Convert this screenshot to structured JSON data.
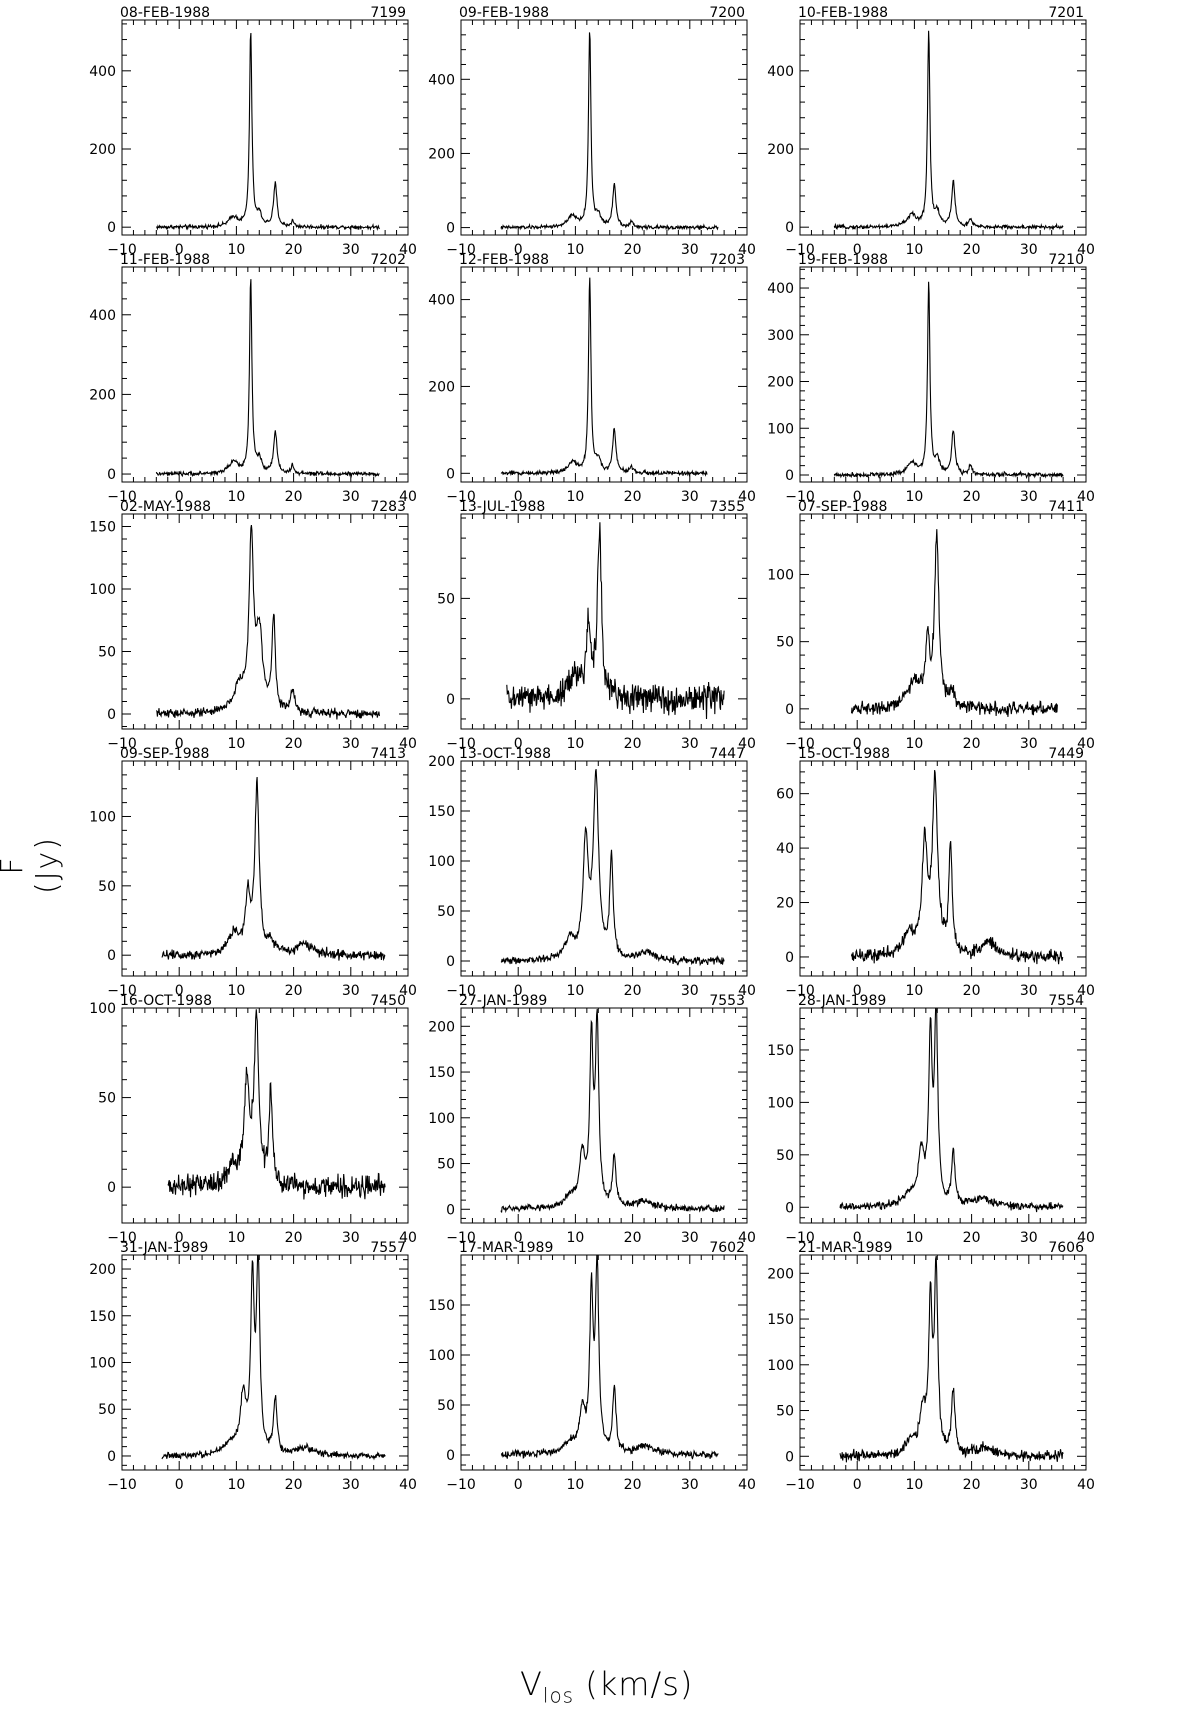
{
  "figure": {
    "ylabel": "F (Jy)",
    "xlabel_main": "V",
    "xlabel_sub": "los",
    "xlabel_unit": "(km/s)"
  },
  "chart_data": [
    {
      "type": "line",
      "title": "08-FEB-1988",
      "id_label": "7199",
      "xlim": [
        -10,
        40
      ],
      "ylim": [
        -20,
        530
      ],
      "yticks": [
        0,
        200,
        400
      ],
      "xticks": [
        -10,
        0,
        10,
        20,
        30,
        40
      ],
      "xrange": [
        -4,
        35
      ],
      "noise": 4,
      "peaks": [
        {
          "v": 9.5,
          "a": 25,
          "w": 1.0
        },
        {
          "v": 12.5,
          "a": 500,
          "w": 0.25
        },
        {
          "v": 14.0,
          "a": 30,
          "w": 0.5
        },
        {
          "v": 16.8,
          "a": 110,
          "w": 0.35
        },
        {
          "v": 19.8,
          "a": 15,
          "w": 0.3
        }
      ]
    },
    {
      "type": "line",
      "title": "09-FEB-1988",
      "id_label": "7200",
      "xlim": [
        -10,
        40
      ],
      "ylim": [
        -20,
        560
      ],
      "yticks": [
        0,
        200,
        400
      ],
      "xticks": [
        -10,
        0,
        10,
        20,
        30,
        40
      ],
      "xrange": [
        -3,
        35
      ],
      "noise": 4,
      "peaks": [
        {
          "v": 9.5,
          "a": 30,
          "w": 1.0
        },
        {
          "v": 12.5,
          "a": 530,
          "w": 0.25
        },
        {
          "v": 14.0,
          "a": 30,
          "w": 0.5
        },
        {
          "v": 16.8,
          "a": 115,
          "w": 0.35
        },
        {
          "v": 19.8,
          "a": 15,
          "w": 0.3
        }
      ]
    },
    {
      "type": "line",
      "title": "10-FEB-1988",
      "id_label": "7201",
      "xlim": [
        -10,
        40
      ],
      "ylim": [
        -20,
        530
      ],
      "yticks": [
        0,
        200,
        400
      ],
      "xticks": [
        -10,
        0,
        10,
        20,
        30,
        40
      ],
      "xrange": [
        -4,
        36
      ],
      "noise": 4,
      "peaks": [
        {
          "v": 9.5,
          "a": 30,
          "w": 1.0
        },
        {
          "v": 12.5,
          "a": 500,
          "w": 0.25
        },
        {
          "v": 14.0,
          "a": 35,
          "w": 0.5
        },
        {
          "v": 16.8,
          "a": 115,
          "w": 0.35
        },
        {
          "v": 19.8,
          "a": 20,
          "w": 0.3
        }
      ]
    },
    {
      "type": "line",
      "title": "11-FEB-1988",
      "id_label": "7202",
      "xlim": [
        -10,
        40
      ],
      "ylim": [
        -20,
        520
      ],
      "yticks": [
        0,
        200,
        400
      ],
      "xticks": [
        -10,
        0,
        10,
        20,
        30,
        40
      ],
      "xrange": [
        -4,
        35
      ],
      "noise": 4,
      "peaks": [
        {
          "v": 9.5,
          "a": 30,
          "w": 1.0
        },
        {
          "v": 12.5,
          "a": 490,
          "w": 0.25
        },
        {
          "v": 14.0,
          "a": 35,
          "w": 0.5
        },
        {
          "v": 16.8,
          "a": 105,
          "w": 0.35
        },
        {
          "v": 19.8,
          "a": 20,
          "w": 0.3
        }
      ]
    },
    {
      "type": "line",
      "title": "12-FEB-1988",
      "id_label": "7203",
      "xlim": [
        -10,
        40
      ],
      "ylim": [
        -20,
        475
      ],
      "yticks": [
        0,
        200,
        400
      ],
      "xticks": [
        -10,
        0,
        10,
        20,
        30,
        40
      ],
      "xrange": [
        -3,
        33
      ],
      "noise": 4,
      "peaks": [
        {
          "v": 9.5,
          "a": 25,
          "w": 1.0
        },
        {
          "v": 12.5,
          "a": 445,
          "w": 0.25
        },
        {
          "v": 14.0,
          "a": 30,
          "w": 0.5
        },
        {
          "v": 16.8,
          "a": 100,
          "w": 0.35
        },
        {
          "v": 19.8,
          "a": 15,
          "w": 0.3
        }
      ]
    },
    {
      "type": "line",
      "title": "19-FEB-1988",
      "id_label": "7210",
      "xlim": [
        -10,
        40
      ],
      "ylim": [
        -15,
        445
      ],
      "yticks": [
        0,
        100,
        200,
        300,
        400
      ],
      "xticks": [
        -10,
        0,
        10,
        20,
        30,
        40
      ],
      "xrange": [
        -4,
        36
      ],
      "noise": 4,
      "peaks": [
        {
          "v": 9.5,
          "a": 25,
          "w": 1.0
        },
        {
          "v": 12.5,
          "a": 410,
          "w": 0.25
        },
        {
          "v": 14.0,
          "a": 30,
          "w": 0.5
        },
        {
          "v": 16.8,
          "a": 95,
          "w": 0.35
        },
        {
          "v": 19.8,
          "a": 20,
          "w": 0.3
        }
      ]
    },
    {
      "type": "line",
      "title": "02-MAY-1988",
      "id_label": "7283",
      "xlim": [
        -10,
        40
      ],
      "ylim": [
        -12,
        160
      ],
      "yticks": [
        0,
        50,
        100,
        150
      ],
      "xticks": [
        -10,
        0,
        10,
        20,
        30,
        40
      ],
      "xrange": [
        -4,
        35
      ],
      "noise": 3,
      "peaks": [
        {
          "v": 10.5,
          "a": 20,
          "w": 1.2
        },
        {
          "v": 12.6,
          "a": 135,
          "w": 0.45
        },
        {
          "v": 14.0,
          "a": 60,
          "w": 0.7
        },
        {
          "v": 16.5,
          "a": 75,
          "w": 0.35
        },
        {
          "v": 19.8,
          "a": 18,
          "w": 0.4
        }
      ]
    },
    {
      "type": "line",
      "title": "13-JUL-1988",
      "id_label": "7355",
      "xlim": [
        -10,
        40
      ],
      "ylim": [
        -15,
        92
      ],
      "yticks": [
        0,
        50
      ],
      "xticks": [
        -10,
        0,
        10,
        20,
        30,
        40
      ],
      "xrange": [
        -2,
        36
      ],
      "noise": 6,
      "peaks": [
        {
          "v": 10.0,
          "a": 10,
          "w": 1.5
        },
        {
          "v": 12.3,
          "a": 35,
          "w": 0.4
        },
        {
          "v": 14.2,
          "a": 80,
          "w": 0.45
        }
      ]
    },
    {
      "type": "line",
      "title": "07-SEP-1988",
      "id_label": "7411",
      "xlim": [
        -10,
        40
      ],
      "ylim": [
        -15,
        145
      ],
      "yticks": [
        0,
        50,
        100
      ],
      "xticks": [
        -10,
        0,
        10,
        20,
        30,
        40
      ],
      "xrange": [
        -1,
        35
      ],
      "noise": 4,
      "peaks": [
        {
          "v": 10.0,
          "a": 20,
          "w": 1.5
        },
        {
          "v": 12.3,
          "a": 45,
          "w": 0.4
        },
        {
          "v": 13.9,
          "a": 125,
          "w": 0.45
        },
        {
          "v": 16.5,
          "a": 10,
          "w": 0.6
        }
      ]
    },
    {
      "type": "line",
      "title": "09-SEP-1988",
      "id_label": "7413",
      "xlim": [
        -10,
        40
      ],
      "ylim": [
        -15,
        140
      ],
      "yticks": [
        0,
        50,
        100
      ],
      "xticks": [
        -10,
        0,
        10,
        20,
        30,
        40
      ],
      "xrange": [
        -3,
        36
      ],
      "noise": 3,
      "peaks": [
        {
          "v": 9.5,
          "a": 15,
          "w": 1.2
        },
        {
          "v": 12.0,
          "a": 40,
          "w": 0.5
        },
        {
          "v": 13.6,
          "a": 120,
          "w": 0.45
        },
        {
          "v": 16.0,
          "a": 8,
          "w": 0.8
        },
        {
          "v": 22.0,
          "a": 8,
          "w": 1.5
        }
      ]
    },
    {
      "type": "line",
      "title": "13-OCT-1988",
      "id_label": "7447",
      "xlim": [
        -10,
        40
      ],
      "ylim": [
        -15,
        200
      ],
      "yticks": [
        0,
        50,
        100,
        150,
        200
      ],
      "xticks": [
        -10,
        0,
        10,
        20,
        30,
        40
      ],
      "xrange": [
        -3,
        36
      ],
      "noise": 3,
      "peaks": [
        {
          "v": 9.0,
          "a": 20,
          "w": 1.0
        },
        {
          "v": 11.8,
          "a": 115,
          "w": 0.55
        },
        {
          "v": 13.6,
          "a": 180,
          "w": 0.55
        },
        {
          "v": 16.3,
          "a": 100,
          "w": 0.35
        },
        {
          "v": 22.5,
          "a": 8,
          "w": 1.5
        }
      ]
    },
    {
      "type": "line",
      "title": "15-OCT-1988",
      "id_label": "7449",
      "xlim": [
        -10,
        40
      ],
      "ylim": [
        -7,
        72
      ],
      "yticks": [
        0,
        20,
        40,
        60
      ],
      "xticks": [
        -10,
        0,
        10,
        20,
        30,
        40
      ],
      "xrange": [
        -1,
        36
      ],
      "noise": 2,
      "peaks": [
        {
          "v": 9.0,
          "a": 8,
          "w": 1.2
        },
        {
          "v": 11.8,
          "a": 40,
          "w": 0.55
        },
        {
          "v": 13.6,
          "a": 63,
          "w": 0.55
        },
        {
          "v": 16.3,
          "a": 38,
          "w": 0.35
        },
        {
          "v": 23.0,
          "a": 6,
          "w": 1.2
        }
      ]
    },
    {
      "type": "line",
      "title": "16-OCT-1988",
      "id_label": "7450",
      "xlim": [
        -10,
        40
      ],
      "ylim": [
        -20,
        100
      ],
      "yticks": [
        0,
        50,
        100
      ],
      "xticks": [
        -10,
        0,
        10,
        20,
        30,
        40
      ],
      "xrange": [
        -2,
        36
      ],
      "noise": 5,
      "peaks": [
        {
          "v": 9.5,
          "a": 10,
          "w": 1.5
        },
        {
          "v": 11.8,
          "a": 55,
          "w": 0.5
        },
        {
          "v": 13.5,
          "a": 90,
          "w": 0.5
        },
        {
          "v": 16.0,
          "a": 50,
          "w": 0.35
        }
      ]
    },
    {
      "type": "line",
      "title": "27-JAN-1989",
      "id_label": "7553",
      "xlim": [
        -10,
        40
      ],
      "ylim": [
        -15,
        220
      ],
      "yticks": [
        0,
        50,
        100,
        150,
        200
      ],
      "xticks": [
        -10,
        0,
        10,
        20,
        30,
        40
      ],
      "xrange": [
        -3,
        36
      ],
      "noise": 3,
      "peaks": [
        {
          "v": 9.0,
          "a": 12,
          "w": 1.3
        },
        {
          "v": 11.2,
          "a": 55,
          "w": 0.6
        },
        {
          "v": 12.8,
          "a": 175,
          "w": 0.35
        },
        {
          "v": 13.8,
          "a": 200,
          "w": 0.35
        },
        {
          "v": 16.8,
          "a": 55,
          "w": 0.35
        },
        {
          "v": 22.0,
          "a": 8,
          "w": 2.0
        }
      ]
    },
    {
      "type": "line",
      "title": "28-JAN-1989",
      "id_label": "7554",
      "xlim": [
        -10,
        40
      ],
      "ylim": [
        -15,
        190
      ],
      "yticks": [
        0,
        50,
        100,
        150
      ],
      "xticks": [
        -10,
        0,
        10,
        20,
        30,
        40
      ],
      "xrange": [
        -3,
        36
      ],
      "noise": 3,
      "peaks": [
        {
          "v": 9.0,
          "a": 10,
          "w": 1.3
        },
        {
          "v": 11.2,
          "a": 50,
          "w": 0.6
        },
        {
          "v": 12.8,
          "a": 155,
          "w": 0.35
        },
        {
          "v": 13.8,
          "a": 180,
          "w": 0.35
        },
        {
          "v": 16.8,
          "a": 50,
          "w": 0.35
        },
        {
          "v": 22.0,
          "a": 8,
          "w": 2.0
        }
      ]
    },
    {
      "type": "line",
      "title": "31-JAN-1989",
      "id_label": "7557",
      "xlim": [
        -10,
        40
      ],
      "ylim": [
        -15,
        215
      ],
      "yticks": [
        0,
        50,
        100,
        150,
        200
      ],
      "xticks": [
        -10,
        0,
        10,
        20,
        30,
        40
      ],
      "xrange": [
        -3,
        36
      ],
      "noise": 3,
      "peaks": [
        {
          "v": 9.0,
          "a": 12,
          "w": 1.3
        },
        {
          "v": 11.2,
          "a": 60,
          "w": 0.6
        },
        {
          "v": 12.8,
          "a": 180,
          "w": 0.35
        },
        {
          "v": 13.8,
          "a": 205,
          "w": 0.35
        },
        {
          "v": 16.8,
          "a": 60,
          "w": 0.35
        },
        {
          "v": 22.0,
          "a": 8,
          "w": 2.0
        }
      ]
    },
    {
      "type": "line",
      "title": "17-MAR-1989",
      "id_label": "7602",
      "xlim": [
        -10,
        40
      ],
      "ylim": [
        -15,
        200
      ],
      "yticks": [
        0,
        50,
        100,
        150
      ],
      "xticks": [
        -10,
        0,
        10,
        20,
        30,
        40
      ],
      "xrange": [
        -3,
        35
      ],
      "noise": 3,
      "peaks": [
        {
          "v": 9.0,
          "a": 10,
          "w": 1.3
        },
        {
          "v": 11.2,
          "a": 40,
          "w": 0.6
        },
        {
          "v": 12.8,
          "a": 155,
          "w": 0.35
        },
        {
          "v": 13.8,
          "a": 185,
          "w": 0.35
        },
        {
          "v": 16.8,
          "a": 65,
          "w": 0.35
        },
        {
          "v": 22.0,
          "a": 8,
          "w": 2.0
        }
      ]
    },
    {
      "type": "line",
      "title": "21-MAR-1989",
      "id_label": "7606",
      "xlim": [
        -10,
        40
      ],
      "ylim": [
        -15,
        220
      ],
      "yticks": [
        0,
        50,
        100,
        150,
        200
      ],
      "xticks": [
        -10,
        0,
        10,
        20,
        30,
        40
      ],
      "xrange": [
        -3,
        36
      ],
      "noise": 5,
      "peaks": [
        {
          "v": 9.5,
          "a": 15,
          "w": 1.3
        },
        {
          "v": 11.5,
          "a": 45,
          "w": 0.6
        },
        {
          "v": 12.8,
          "a": 160,
          "w": 0.35
        },
        {
          "v": 13.8,
          "a": 200,
          "w": 0.35
        },
        {
          "v": 16.8,
          "a": 70,
          "w": 0.35
        },
        {
          "v": 22.0,
          "a": 8,
          "w": 2.0
        }
      ]
    }
  ]
}
